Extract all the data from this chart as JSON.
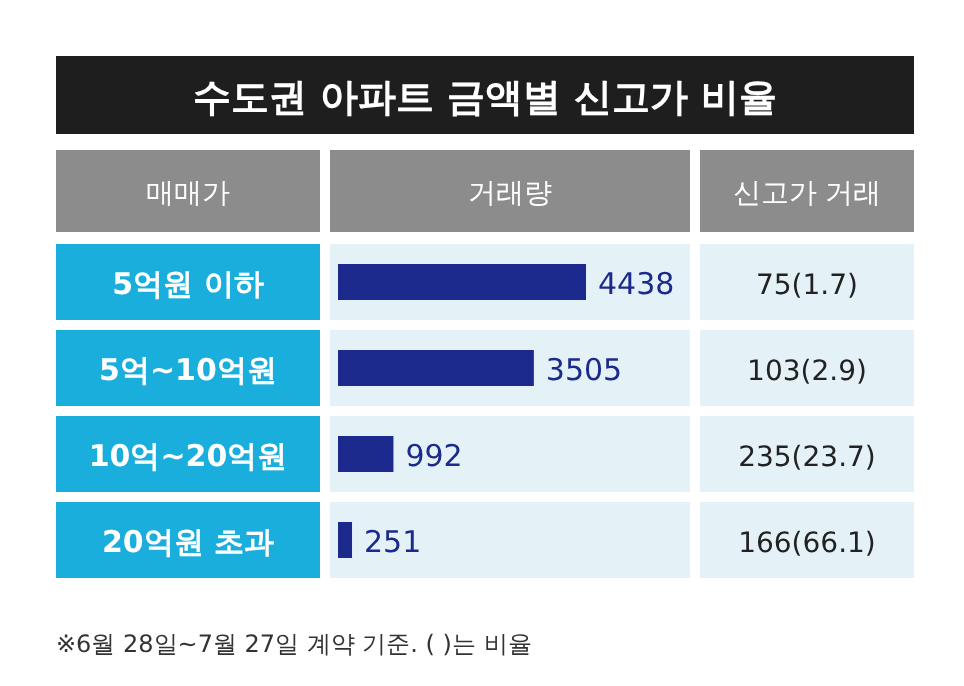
{
  "chart_data": {
    "type": "bar",
    "orientation": "horizontal",
    "title": "수도권 아파트 금액별 신고가 비율",
    "ylabel": "매매가",
    "xlabel": "거래량",
    "categories": [
      "5억원 이하",
      "5억~10억원",
      "10억~20억원",
      "20억원 초과"
    ],
    "values": [
      4438,
      3505,
      992,
      251
    ],
    "color": "#1b2a8c",
    "data_labels": true,
    "annotations": [
      "신고가 거래",
      "75(1.7)",
      "103(2.9)",
      "235(23.7)",
      "166(66.1)",
      "※6월 28일~7월 27일 계약 기준. ( )는 비율"
    ]
  }
}
